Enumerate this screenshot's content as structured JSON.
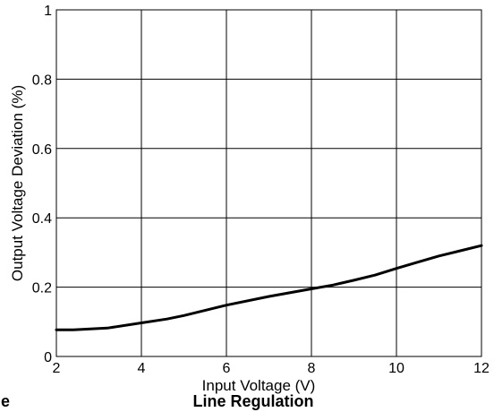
{
  "chart_data": {
    "type": "line",
    "title": "Line Regulation",
    "xlabel": "Input Voltage (V)",
    "ylabel": "Output Voltage Deviation (%)",
    "xlim": [
      2,
      12
    ],
    "ylim": [
      0,
      1
    ],
    "xticks": [
      2,
      4,
      6,
      8,
      10,
      12
    ],
    "yticks": [
      0,
      0.2,
      0.4,
      0.6,
      0.8,
      1
    ],
    "ytick_labels": [
      "0",
      "0.2",
      "0.4",
      "0.6",
      "0.8",
      "1"
    ],
    "grid": true,
    "left_caption_fragment": "e",
    "series": [
      {
        "x": [
          2,
          2.4,
          3.2,
          4,
          4.6,
          5,
          6,
          7,
          8,
          8.5,
          9,
          9.5,
          10,
          10.5,
          11,
          11.5,
          12
        ],
        "y": [
          0.077,
          0.077,
          0.082,
          0.097,
          0.108,
          0.118,
          0.148,
          0.173,
          0.195,
          0.206,
          0.22,
          0.235,
          0.254,
          0.272,
          0.29,
          0.305,
          0.32
        ]
      }
    ]
  }
}
